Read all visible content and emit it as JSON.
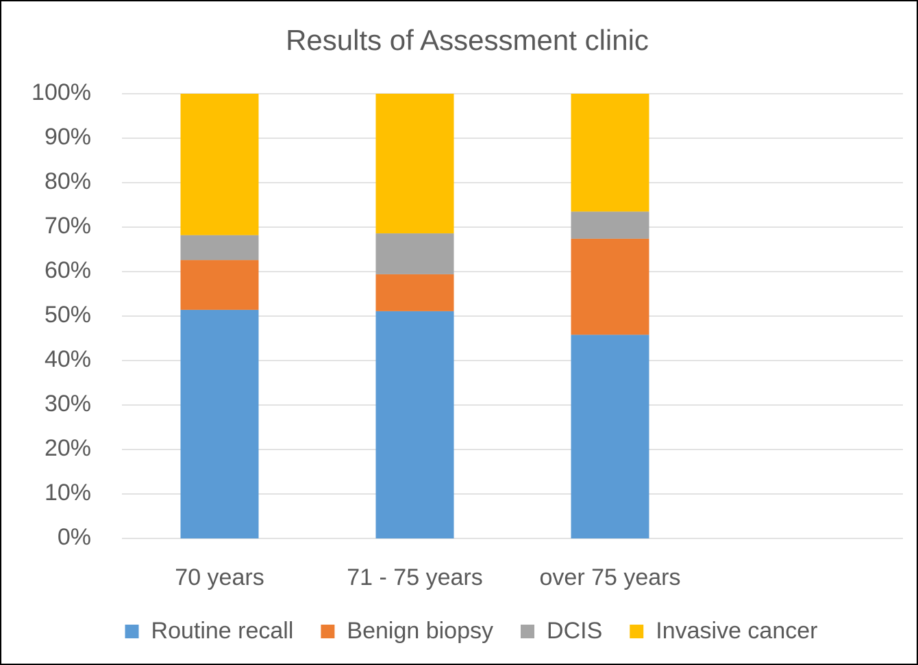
{
  "chart_data": {
    "type": "stacked_bar",
    "title": "Results of Assessment clinic",
    "categories": [
      "70 years",
      "71 - 75 years",
      "over 75 years",
      null
    ],
    "series": [
      {
        "name": "Routine recall",
        "color": "#5b9bd5",
        "values": [
          51.4,
          51.1,
          45.8,
          null
        ]
      },
      {
        "name": "Benign biopsy",
        "color": "#ed7d31",
        "values": [
          11.2,
          8.3,
          21.6,
          null
        ]
      },
      {
        "name": "DCIS",
        "color": "#a5a5a5",
        "values": [
          5.6,
          9.2,
          6.1,
          null
        ]
      },
      {
        "name": "Invasive cancer",
        "color": "#ffc000",
        "values": [
          31.8,
          31.4,
          26.5,
          null
        ]
      }
    ],
    "ylim": [
      0,
      100
    ],
    "yticks": [
      {
        "value": 0,
        "label": "0%"
      },
      {
        "value": 10,
        "label": "10%"
      },
      {
        "value": 20,
        "label": "20%"
      },
      {
        "value": 30,
        "label": "30%"
      },
      {
        "value": 40,
        "label": "40%"
      },
      {
        "value": 50,
        "label": "50%"
      },
      {
        "value": 60,
        "label": "60%"
      },
      {
        "value": 70,
        "label": "70%"
      },
      {
        "value": 80,
        "label": "80%"
      },
      {
        "value": 90,
        "label": "90%"
      },
      {
        "value": 100,
        "label": "100%"
      }
    ],
    "grid": true,
    "legend": "bottom"
  }
}
